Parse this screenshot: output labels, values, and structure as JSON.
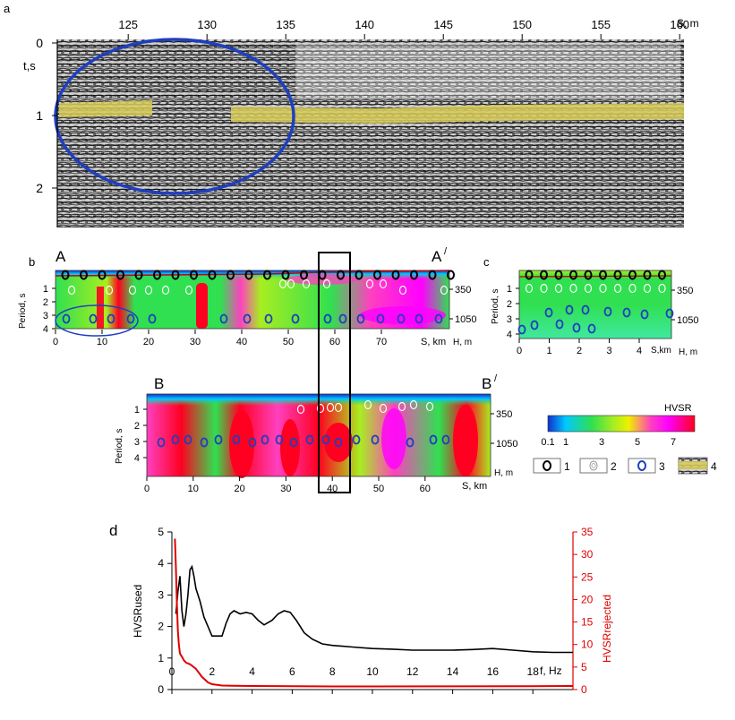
{
  "panel_labels": {
    "a": "a",
    "b": "b",
    "c": "c",
    "d": "d"
  },
  "panel_a": {
    "x_ticks": [
      125,
      130,
      135,
      140,
      145,
      150,
      155,
      160
    ],
    "x_unit": "S, m",
    "y_ticks": [
      0,
      1,
      2
    ],
    "y_unit": "t,s",
    "overlay_color": "#1f3fbf",
    "horizon_color": "#d8cc58"
  },
  "panel_b": {
    "profile_A_start": "A",
    "profile_A_end": "A",
    "profile_B_start": "B",
    "profile_B_end": "B",
    "prime_mark": "/",
    "ylabel": "Period, s",
    "period_ticks": [
      "1",
      "2",
      "3",
      "4"
    ],
    "depth_ticks": [
      "350",
      "1050"
    ],
    "depth_unit": "H, m",
    "A_x_ticks": [
      0,
      10,
      20,
      30,
      40,
      50,
      60,
      70
    ],
    "A_x_unit": "S, km",
    "B_x_ticks": [
      0,
      10,
      20,
      30,
      40,
      50,
      60
    ],
    "B_x_unit": "S, km"
  },
  "panel_c": {
    "ylabel": "Period, s",
    "period_ticks": [
      "1",
      "2",
      "3",
      "4"
    ],
    "depth_ticks": [
      "350",
      "1050"
    ],
    "depth_unit": "H, m",
    "x_ticks": [
      0,
      1,
      2,
      3,
      4
    ],
    "x_unit": "S,km"
  },
  "colorbar": {
    "title": "HVSR",
    "ticks": [
      "0.1",
      "1",
      "3",
      "5",
      "7"
    ],
    "colors": [
      "#1030d0",
      "#00c8ff",
      "#30e050",
      "#a8ee20",
      "#f0f000",
      "#ff40c0",
      "#ff00ff",
      "#ff0020"
    ]
  },
  "legend": [
    {
      "label": "1",
      "symbol": "black-circle"
    },
    {
      "label": "2",
      "symbol": "grey-double-circle"
    },
    {
      "label": "3",
      "symbol": "blue-circle"
    },
    {
      "label": "4",
      "symbol": "horizon-swatch"
    }
  ],
  "chart_data": {
    "type": "line",
    "xlabel": "f, Hz",
    "ylabel": "HVSRused",
    "y2label": "HVSRrejected",
    "xlim": [
      0,
      20
    ],
    "ylim": [
      0,
      5
    ],
    "y2lim": [
      0,
      35
    ],
    "x_ticks": [
      0,
      2,
      4,
      6,
      8,
      10,
      12,
      14,
      16,
      18
    ],
    "y_ticks": [
      0,
      1,
      2,
      3,
      4,
      5
    ],
    "y2_ticks": [
      0,
      5,
      10,
      15,
      20,
      25,
      30,
      35
    ],
    "series": [
      {
        "axis": "left",
        "color": "#000000",
        "x": [
          0.2,
          0.3,
          0.4,
          0.5,
          0.6,
          0.7,
          0.8,
          0.9,
          1.0,
          1.1,
          1.2,
          1.4,
          1.6,
          1.8,
          2.0,
          2.2,
          2.5,
          2.7,
          2.9,
          3.1,
          3.4,
          3.7,
          4.0,
          4.3,
          4.6,
          5.0,
          5.3,
          5.6,
          5.9,
          6.2,
          6.6,
          7.0,
          7.5,
          8.0,
          9.0,
          10.0,
          11.0,
          12.0,
          13.0,
          14.0,
          15.0,
          16.0,
          17.0,
          18.0,
          19.0,
          20.0
        ],
        "values": [
          2.4,
          3.1,
          3.6,
          2.5,
          2.0,
          2.4,
          3.0,
          3.8,
          3.9,
          3.6,
          3.2,
          2.8,
          2.3,
          2.0,
          1.7,
          1.7,
          1.7,
          2.1,
          2.4,
          2.5,
          2.4,
          2.45,
          2.4,
          2.2,
          2.05,
          2.2,
          2.4,
          2.5,
          2.45,
          2.2,
          1.8,
          1.6,
          1.45,
          1.4,
          1.35,
          1.3,
          1.28,
          1.25,
          1.25,
          1.25,
          1.27,
          1.3,
          1.25,
          1.2,
          1.18,
          1.18
        ]
      },
      {
        "axis": "right",
        "color": "#e00000",
        "x": [
          0.15,
          0.2,
          0.25,
          0.3,
          0.35,
          0.4,
          0.5,
          0.6,
          0.7,
          0.8,
          0.9,
          1.0,
          1.2,
          1.5,
          1.8,
          2.0,
          2.5,
          3.0,
          4.0,
          6.0,
          8.0,
          10.0,
          14.0,
          18.0,
          20.0
        ],
        "values": [
          33.5,
          27.0,
          19.0,
          13.0,
          10.0,
          8.0,
          7.3,
          6.5,
          6.0,
          5.8,
          5.6,
          5.3,
          4.6,
          2.8,
          1.6,
          1.2,
          0.9,
          0.85,
          0.8,
          0.75,
          0.7,
          0.7,
          0.72,
          0.75,
          0.8
        ]
      }
    ]
  }
}
